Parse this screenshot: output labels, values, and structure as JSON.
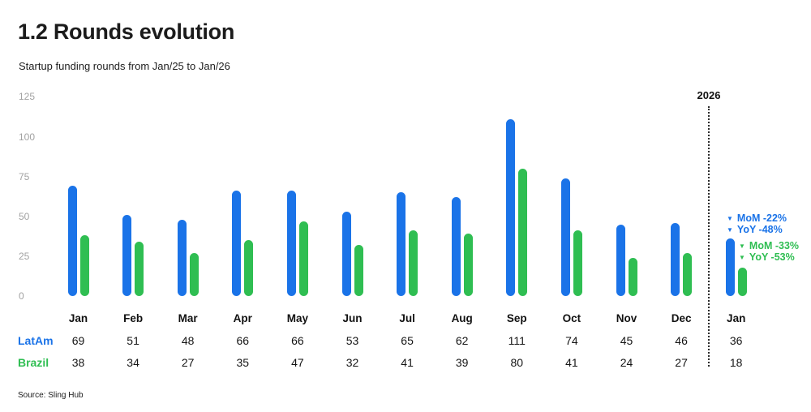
{
  "header": {
    "title": "1.2 Rounds evolution",
    "subtitle": "Startup funding rounds from Jan/25 to Jan/26"
  },
  "footer": {
    "source": "Source: Sling Hub"
  },
  "chart_data": {
    "type": "bar",
    "title": "1.2 Rounds evolution",
    "subtitle": "Startup funding rounds from Jan/25 to Jan/26",
    "categories": [
      "Jan",
      "Feb",
      "Mar",
      "Apr",
      "May",
      "Jun",
      "Jul",
      "Aug",
      "Sep",
      "Oct",
      "Nov",
      "Dec",
      "Jan"
    ],
    "series": [
      {
        "name": "LatAm",
        "color": "#1a73e8",
        "values": [
          69,
          51,
          48,
          66,
          66,
          53,
          65,
          62,
          111,
          74,
          45,
          46,
          36
        ]
      },
      {
        "name": "Brazil",
        "color": "#2fbe52",
        "values": [
          38,
          34,
          27,
          35,
          47,
          32,
          41,
          39,
          80,
          41,
          24,
          27,
          18
        ]
      }
    ],
    "xlabel": "",
    "ylabel": "",
    "ylim": [
      0,
      125
    ],
    "y_ticks": [
      0,
      25,
      50,
      75,
      100,
      125
    ],
    "grid": false,
    "legend_position": "table-left",
    "next_year_label": "2026",
    "divider_after_category_index": 11,
    "annotations": {
      "marker": "▼",
      "latam": {
        "color": "#1a73e8",
        "lines": [
          "MoM -22%",
          "YoY -48%"
        ]
      },
      "brazil": {
        "color": "#2fbe52",
        "lines": [
          "MoM -33%",
          "YoY -53%"
        ]
      }
    }
  }
}
